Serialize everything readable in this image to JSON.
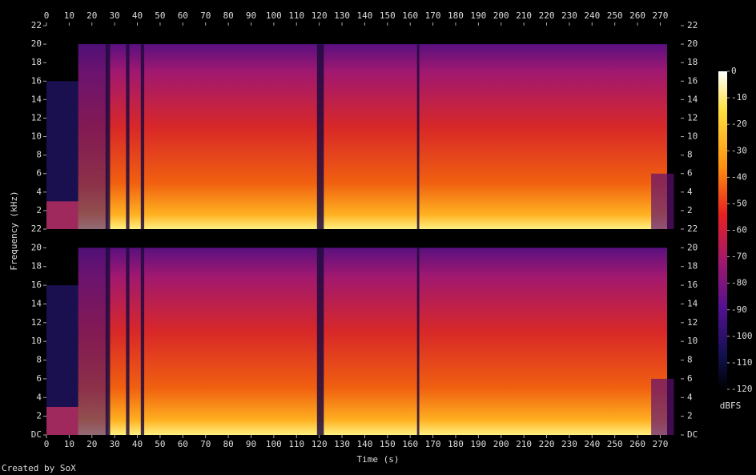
{
  "chart_data": {
    "type": "spectrogram",
    "xlabel": "Time (s)",
    "ylabel": "Frequency (kHz)",
    "xlim": [
      0,
      279
    ],
    "xticks": [
      0,
      10,
      20,
      30,
      40,
      50,
      60,
      70,
      80,
      90,
      100,
      110,
      120,
      130,
      140,
      150,
      160,
      170,
      180,
      190,
      200,
      210,
      220,
      230,
      240,
      250,
      260,
      270
    ],
    "channels": [
      {
        "ylim": [
          0,
          22
        ],
        "yticks": [
          2,
          4,
          6,
          8,
          10,
          12,
          14,
          16,
          18,
          20,
          22
        ]
      },
      {
        "ylim": [
          0,
          22
        ],
        "yticks": [
          {
            "value": 0,
            "label": "DC"
          },
          2,
          4,
          6,
          8,
          10,
          12,
          14,
          16,
          18,
          20,
          22
        ]
      }
    ],
    "colorbar": {
      "label": "dBFS",
      "lim": [
        -120,
        0
      ],
      "ticks": [
        0,
        -10,
        -20,
        -30,
        -40,
        -50,
        -60,
        -70,
        -80,
        -90,
        -100,
        -110,
        -120
      ]
    }
  },
  "footer": "Created by SoX"
}
